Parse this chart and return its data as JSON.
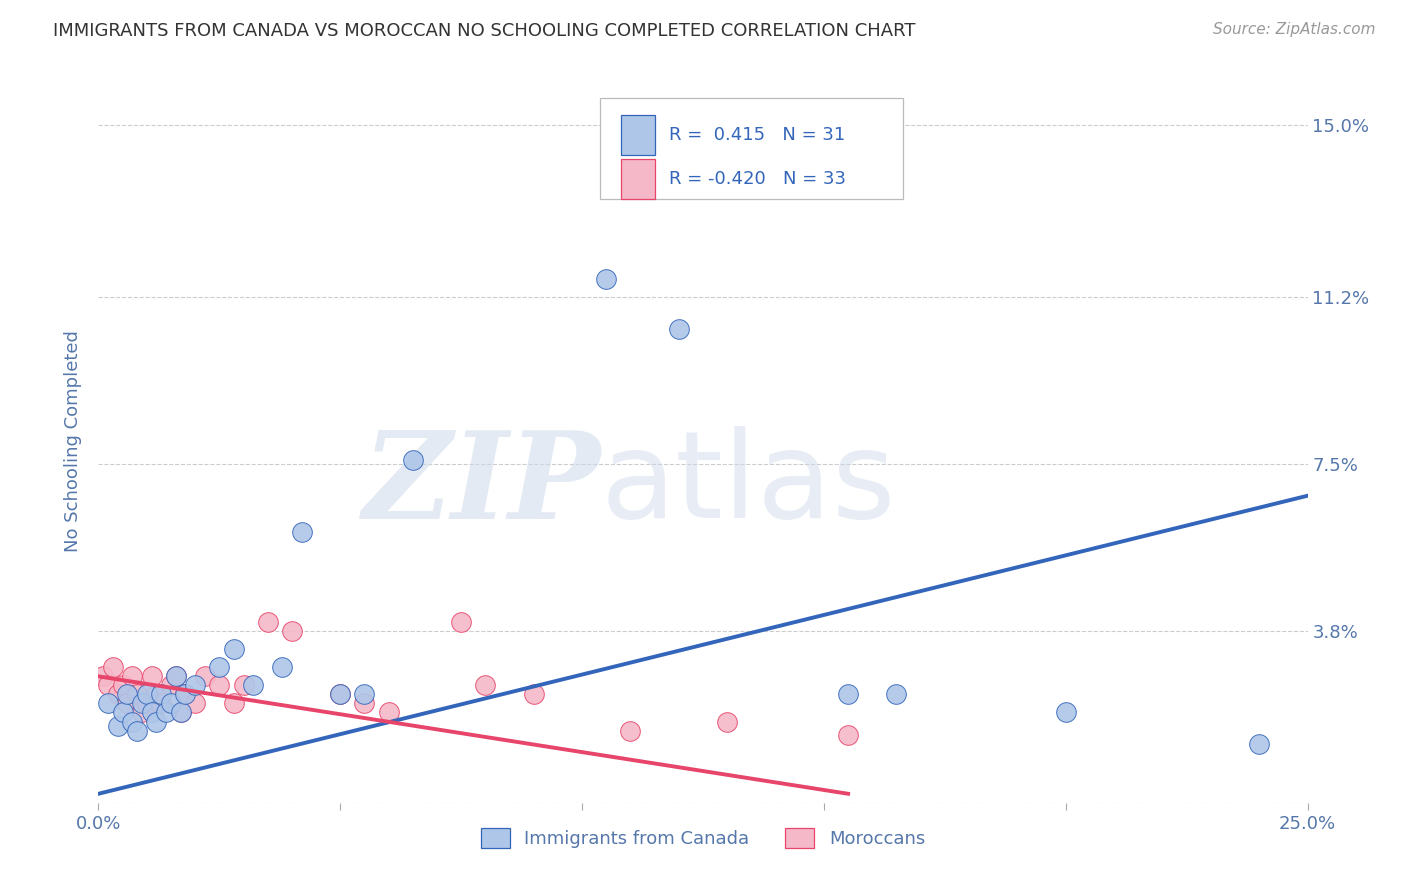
{
  "title": "IMMIGRANTS FROM CANADA VS MOROCCAN NO SCHOOLING COMPLETED CORRELATION CHART",
  "source": "Source: ZipAtlas.com",
  "ylabel": "No Schooling Completed",
  "xlim": [
    0.0,
    0.25
  ],
  "ylim": [
    0.0,
    0.16
  ],
  "yticks": [
    0.0,
    0.038,
    0.075,
    0.112,
    0.15
  ],
  "ytick_labels": [
    "",
    "3.8%",
    "7.5%",
    "11.2%",
    "15.0%"
  ],
  "xticks": [
    0.0,
    0.05,
    0.1,
    0.15,
    0.2,
    0.25
  ],
  "xtick_labels": [
    "0.0%",
    "",
    "",
    "",
    "",
    "25.0%"
  ],
  "blue_color": "#aec6e8",
  "pink_color": "#f5b8c8",
  "blue_line_color": "#3366bb",
  "pink_line_color": "#e8456a",
  "legend_text_color": "#3366bb",
  "legend_blue_label": "R =  0.415   N = 31",
  "legend_pink_label": "R = -0.420   N = 33",
  "legend_label_blue": "Immigrants from Canada",
  "legend_label_pink": "Moroccans",
  "blue_points_x": [
    0.002,
    0.004,
    0.005,
    0.006,
    0.007,
    0.008,
    0.009,
    0.01,
    0.011,
    0.012,
    0.013,
    0.014,
    0.015,
    0.016,
    0.017,
    0.018,
    0.02,
    0.025,
    0.028,
    0.032,
    0.038,
    0.042,
    0.05,
    0.055,
    0.065,
    0.105,
    0.12,
    0.155,
    0.165,
    0.2,
    0.24
  ],
  "blue_points_y": [
    0.022,
    0.017,
    0.02,
    0.024,
    0.018,
    0.016,
    0.022,
    0.024,
    0.02,
    0.018,
    0.024,
    0.02,
    0.022,
    0.028,
    0.02,
    0.024,
    0.026,
    0.03,
    0.034,
    0.026,
    0.03,
    0.06,
    0.024,
    0.024,
    0.076,
    0.116,
    0.105,
    0.024,
    0.024,
    0.02,
    0.013
  ],
  "pink_points_x": [
    0.001,
    0.002,
    0.003,
    0.004,
    0.005,
    0.006,
    0.007,
    0.008,
    0.009,
    0.01,
    0.011,
    0.012,
    0.013,
    0.015,
    0.016,
    0.017,
    0.018,
    0.02,
    0.022,
    0.025,
    0.028,
    0.03,
    0.035,
    0.04,
    0.05,
    0.055,
    0.06,
    0.075,
    0.08,
    0.09,
    0.11,
    0.13,
    0.155
  ],
  "pink_points_y": [
    0.028,
    0.026,
    0.03,
    0.024,
    0.026,
    0.022,
    0.028,
    0.024,
    0.02,
    0.022,
    0.028,
    0.024,
    0.022,
    0.026,
    0.028,
    0.02,
    0.024,
    0.022,
    0.028,
    0.026,
    0.022,
    0.026,
    0.04,
    0.038,
    0.024,
    0.022,
    0.02,
    0.04,
    0.026,
    0.024,
    0.016,
    0.018,
    0.015
  ],
  "blue_line_x": [
    0.0,
    0.25
  ],
  "blue_line_y": [
    0.002,
    0.068
  ],
  "pink_line_x": [
    0.0,
    0.155
  ],
  "pink_line_y": [
    0.028,
    0.002
  ],
  "watermark_zip": "ZIP",
  "watermark_atlas": "atlas",
  "bg_color": "#ffffff",
  "grid_color": "#cccccc",
  "title_color": "#333333",
  "axis_label_color": "#5577aa",
  "right_tick_color": "#5577aa"
}
